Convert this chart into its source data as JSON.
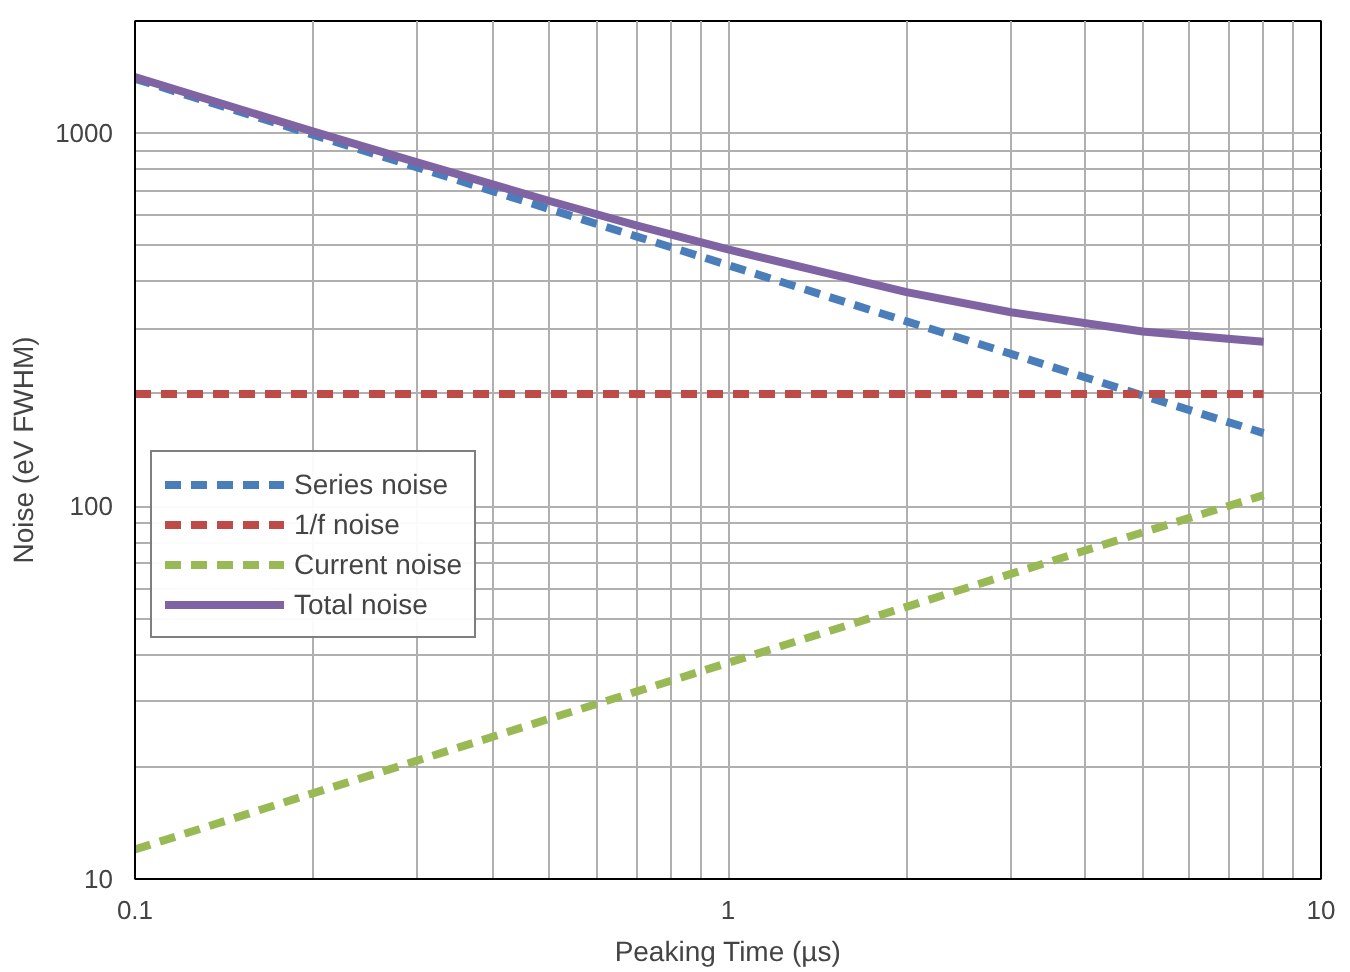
{
  "chart_data": {
    "type": "line",
    "xlabel": "Peaking Time (µs)",
    "ylabel": "Noise (eV FWHM)",
    "log": "xy",
    "grid": true,
    "legend": "left",
    "x": [
      0.1,
      0.2,
      0.3,
      0.5,
      0.7,
      1,
      2,
      3,
      5,
      8
    ],
    "xlim": [
      0.1,
      10
    ],
    "ylim": [
      10,
      2000
    ],
    "xticks": [
      0.1,
      {
        "value": 0.2,
        "label": null
      },
      {
        "value": 0.3,
        "label": null
      },
      {
        "value": 0.4,
        "label": null
      },
      {
        "value": 0.5,
        "label": null
      },
      {
        "value": 0.6,
        "label": null
      },
      {
        "value": 0.7,
        "label": null
      },
      {
        "value": 0.8,
        "label": null
      },
      {
        "value": 0.9,
        "label": null
      },
      1,
      {
        "value": 2,
        "label": null
      },
      {
        "value": 3,
        "label": null
      },
      {
        "value": 4,
        "label": null
      },
      {
        "value": 5,
        "label": null
      },
      {
        "value": 6,
        "label": null
      },
      {
        "value": 7,
        "label": null
      },
      {
        "value": 8,
        "label": null
      },
      {
        "value": 9,
        "label": null
      },
      10
    ],
    "yticks": [
      10,
      {
        "value": 20,
        "label": null
      },
      {
        "value": 30,
        "label": null
      },
      {
        "value": 40,
        "label": null
      },
      {
        "value": 50,
        "label": null
      },
      {
        "value": 60,
        "label": null
      },
      {
        "value": 70,
        "label": null
      },
      {
        "value": 80,
        "label": null
      },
      {
        "value": 90,
        "label": null
      },
      100,
      {
        "value": 200,
        "label": null
      },
      {
        "value": 300,
        "label": null
      },
      {
        "value": 400,
        "label": null
      },
      {
        "value": 500,
        "label": null
      },
      {
        "value": 600,
        "label": null
      },
      {
        "value": 700,
        "label": null
      },
      {
        "value": 800,
        "label": null
      },
      {
        "value": 900,
        "label": null
      },
      1000,
      {
        "value": 2000,
        "label": null
      }
    ],
    "series": [
      {
        "name": "Series noise",
        "color": "#4a7ebb",
        "line_style": "dashed",
        "values": [
          1400,
          990,
          809,
          626,
          529,
          443,
          313,
          256,
          198,
          157
        ]
      },
      {
        "name": "1/f noise",
        "color": "#be4b48",
        "line_style": "dashed",
        "values": [
          200,
          200,
          200,
          200,
          200,
          200,
          200,
          200,
          200,
          200
        ]
      },
      {
        "name": "Current noise",
        "color": "#98b954",
        "line_style": "dashed",
        "values": [
          12,
          17,
          20.8,
          26.9,
          31.8,
          38,
          53.7,
          65.8,
          85,
          107
        ]
      },
      {
        "name": "Total noise",
        "color": "#7f63a2",
        "line_style": "solid",
        "values": [
          1414,
          1010,
          834,
          658,
          566,
          488,
          375,
          331,
          294,
          276
        ]
      }
    ]
  }
}
